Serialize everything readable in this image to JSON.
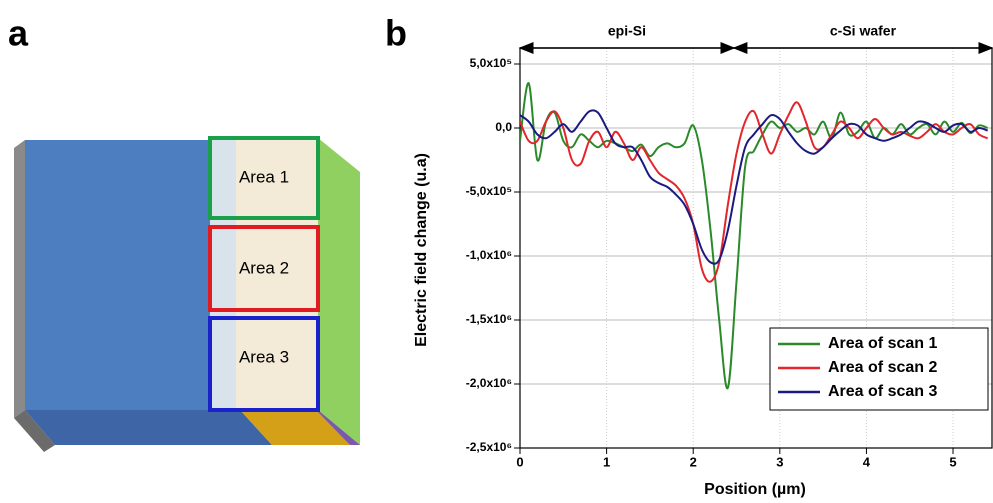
{
  "figure": {
    "panel_labels": [
      "a",
      "b"
    ]
  },
  "diagram": {
    "areas": [
      {
        "label": "Area 1"
      },
      {
        "label": "Area 2"
      },
      {
        "label": "Area 3"
      }
    ]
  },
  "chart_data": {
    "type": "line",
    "x_label": "Position (µm)",
    "y_label": "Electric field change (u.a)",
    "x": [
      0,
      0.1,
      0.2,
      0.3,
      0.4,
      0.5,
      0.6,
      0.7,
      0.8,
      0.9,
      1.0,
      1.1,
      1.2,
      1.3,
      1.4,
      1.5,
      1.6,
      1.7,
      1.8,
      1.9,
      2.0,
      2.1,
      2.2,
      2.3,
      2.4,
      2.5,
      2.6,
      2.7,
      2.8,
      2.9,
      3.0,
      3.1,
      3.2,
      3.3,
      3.4,
      3.5,
      3.6,
      3.7,
      3.8,
      3.9,
      4.0,
      4.1,
      4.2,
      4.3,
      4.4,
      4.5,
      4.6,
      4.7,
      4.8,
      4.9,
      5.0,
      5.1,
      5.2,
      5.3,
      5.4
    ],
    "series": [
      {
        "name": "Area of scan 1",
        "color": "#2a8a2a",
        "values": [
          -100000,
          350000,
          -250000,
          50000,
          120000,
          -100000,
          -150000,
          -50000,
          -100000,
          -150000,
          -100000,
          -120000,
          -150000,
          -180000,
          -130000,
          -220000,
          -150000,
          -120000,
          -150000,
          -120000,
          20000,
          -250000,
          -800000,
          -1500000,
          -2030000,
          -1200000,
          -300000,
          -180000,
          -50000,
          50000,
          0,
          30000,
          -30000,
          0,
          -50000,
          50000,
          -80000,
          120000,
          -50000,
          -30000,
          50000,
          -80000,
          0,
          -50000,
          30000,
          -50000,
          0,
          30000,
          -50000,
          50000,
          -30000,
          40000,
          -40000,
          20000,
          0
        ]
      },
      {
        "name": "Area of scan 2",
        "color": "#e3262b",
        "values": [
          50000,
          -100000,
          -100000,
          50000,
          130000,
          0,
          -250000,
          -280000,
          -100000,
          -30000,
          -150000,
          -30000,
          -120000,
          -250000,
          -150000,
          -250000,
          -350000,
          -400000,
          -450000,
          -550000,
          -750000,
          -1100000,
          -1200000,
          -1050000,
          -600000,
          -200000,
          50000,
          130000,
          -50000,
          -200000,
          -50000,
          100000,
          200000,
          50000,
          -150000,
          -150000,
          -50000,
          50000,
          0,
          -80000,
          0,
          70000,
          0,
          -50000,
          -30000,
          -60000,
          -80000,
          -30000,
          30000,
          -30000,
          -50000,
          0,
          30000,
          -50000,
          -80000
        ]
      },
      {
        "name": "Area of scan 3",
        "color": "#1a1a80",
        "values": [
          100000,
          50000,
          -50000,
          -80000,
          -30000,
          30000,
          -30000,
          50000,
          130000,
          120000,
          0,
          -120000,
          -150000,
          -150000,
          -250000,
          -380000,
          -430000,
          -460000,
          -520000,
          -600000,
          -750000,
          -950000,
          -1050000,
          -1030000,
          -800000,
          -450000,
          -150000,
          -50000,
          30000,
          100000,
          70000,
          -30000,
          -120000,
          -180000,
          -200000,
          -150000,
          -80000,
          -20000,
          30000,
          20000,
          -50000,
          -80000,
          -100000,
          -80000,
          -50000,
          0,
          50000,
          40000,
          0,
          -30000,
          20000,
          30000,
          -30000,
          0,
          -20000
        ]
      }
    ],
    "xlim": [
      0,
      5.45
    ],
    "xticks": [
      0,
      1,
      2,
      3,
      4,
      5
    ],
    "ylim": [
      -2500000,
      625000
    ],
    "yticks": [
      {
        "value": 500000,
        "label": "5,0x10⁵"
      },
      {
        "value": 0,
        "label": "0,0"
      },
      {
        "value": -500000,
        "label": "-5,0x10⁵"
      },
      {
        "value": -1000000,
        "label": "-1,0x10⁶"
      },
      {
        "value": -1500000,
        "label": "-1,5x10⁶"
      },
      {
        "value": -2000000,
        "label": "-2,0x10⁶"
      },
      {
        "value": -2500000,
        "label": "-2,5x10⁶"
      }
    ],
    "grid": true,
    "legend": "lower right",
    "annotations": [
      {
        "text": "epi-Si",
        "x0": 0,
        "x1": 2.47
      },
      {
        "text": "c-Si wafer",
        "x0": 2.47,
        "x1": 5.45
      }
    ]
  }
}
